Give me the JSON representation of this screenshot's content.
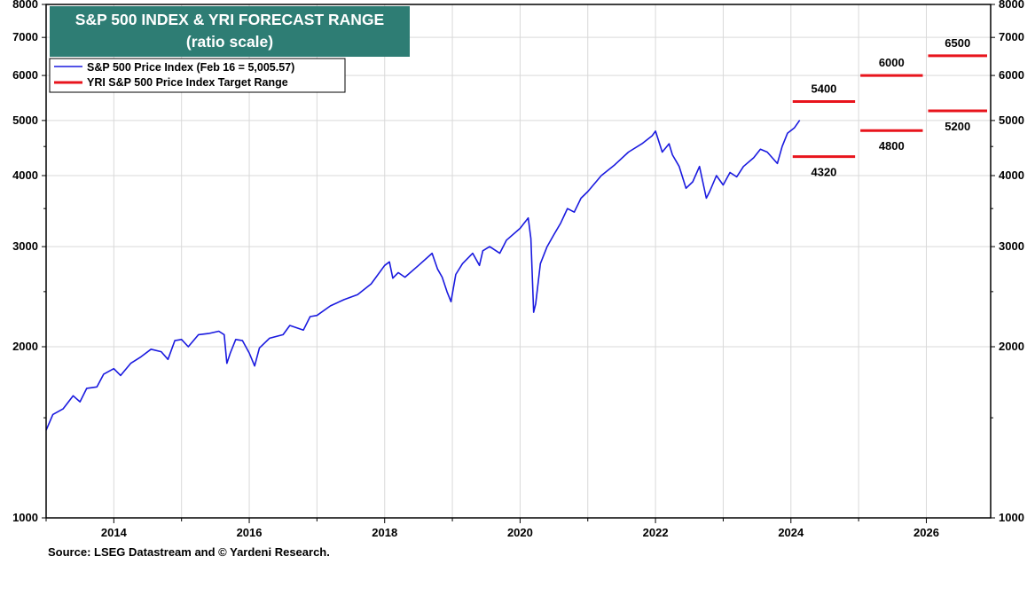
{
  "chart_data": {
    "type": "line",
    "title": "S&P 500 INDEX & YRI FORECAST RANGE",
    "subtitle": "(ratio scale)",
    "y_scale": "log",
    "ylim": [
      1000,
      8000
    ],
    "y_ticks": [
      1000,
      2000,
      3000,
      4000,
      5000,
      6000,
      7000,
      8000
    ],
    "x_ticks": [
      "2014",
      "2016",
      "2018",
      "2020",
      "2022",
      "2024",
      "2026"
    ],
    "xlim": [
      2013.0,
      2026.95
    ],
    "grid": true,
    "legend_placement": "top-left",
    "series": [
      {
        "name": "S&P 500 Price Index (Feb 16 = 5,005.57)",
        "color": "#1a1adf",
        "x": [
          2013.0,
          2013.1,
          2013.25,
          2013.4,
          2013.5,
          2013.6,
          2013.75,
          2013.85,
          2014.0,
          2014.1,
          2014.25,
          2014.4,
          2014.55,
          2014.7,
          2014.8,
          2014.9,
          2015.0,
          2015.1,
          2015.25,
          2015.4,
          2015.55,
          2015.63,
          2015.67,
          2015.72,
          2015.8,
          2015.9,
          2016.0,
          2016.08,
          2016.15,
          2016.3,
          2016.5,
          2016.6,
          2016.8,
          2016.9,
          2017.0,
          2017.2,
          2017.4,
          2017.6,
          2017.8,
          2018.0,
          2018.07,
          2018.12,
          2018.2,
          2018.3,
          2018.5,
          2018.7,
          2018.78,
          2018.85,
          2018.92,
          2018.98,
          2019.05,
          2019.15,
          2019.3,
          2019.4,
          2019.45,
          2019.55,
          2019.7,
          2019.8,
          2020.0,
          2020.12,
          2020.16,
          2020.2,
          2020.23,
          2020.3,
          2020.4,
          2020.5,
          2020.6,
          2020.7,
          2020.8,
          2020.9,
          2021.0,
          2021.2,
          2021.4,
          2021.6,
          2021.8,
          2021.95,
          2022.0,
          2022.1,
          2022.2,
          2022.25,
          2022.35,
          2022.45,
          2022.55,
          2022.65,
          2022.75,
          2022.8,
          2022.9,
          2023.0,
          2023.1,
          2023.2,
          2023.3,
          2023.45,
          2023.55,
          2023.65,
          2023.8,
          2023.87,
          2023.95,
          2024.05,
          2024.13
        ],
        "values": [
          1426,
          1520,
          1555,
          1640,
          1600,
          1690,
          1700,
          1790,
          1830,
          1780,
          1870,
          1920,
          1980,
          1960,
          1900,
          2050,
          2060,
          2000,
          2100,
          2110,
          2130,
          2100,
          1870,
          1950,
          2060,
          2050,
          1950,
          1850,
          1990,
          2070,
          2100,
          2180,
          2140,
          2260,
          2270,
          2360,
          2420,
          2470,
          2580,
          2780,
          2820,
          2640,
          2700,
          2650,
          2780,
          2920,
          2740,
          2650,
          2500,
          2400,
          2680,
          2800,
          2920,
          2780,
          2950,
          3000,
          2920,
          3080,
          3230,
          3370,
          3100,
          2300,
          2380,
          2800,
          3000,
          3150,
          3300,
          3500,
          3450,
          3650,
          3750,
          4000,
          4180,
          4400,
          4550,
          4700,
          4790,
          4400,
          4550,
          4350,
          4150,
          3800,
          3900,
          4150,
          3650,
          3750,
          4000,
          3850,
          4050,
          3980,
          4150,
          4300,
          4450,
          4400,
          4200,
          4500,
          4750,
          4850,
          5005.57
        ]
      }
    ],
    "target_range": {
      "name": "YRI S&P 500 Price Index Target Range",
      "color": "#e8141c",
      "ranges": [
        {
          "year": "2024",
          "x_start": 2024.0,
          "x_end": 2025.0,
          "high": 5400,
          "low": 4320,
          "high_label": "5400",
          "low_label": "4320"
        },
        {
          "year": "2025",
          "x_start": 2025.0,
          "x_end": 2026.0,
          "high": 6000,
          "low": 4800,
          "high_label": "6000",
          "low_label": "4800"
        },
        {
          "year": "2026",
          "x_start": 2026.0,
          "x_end": 2026.95,
          "high": 6500,
          "low": 5200,
          "high_label": "6500",
          "low_label": "5200"
        }
      ]
    }
  },
  "source": "Source: LSEG Datastream and © Yardeni Research."
}
